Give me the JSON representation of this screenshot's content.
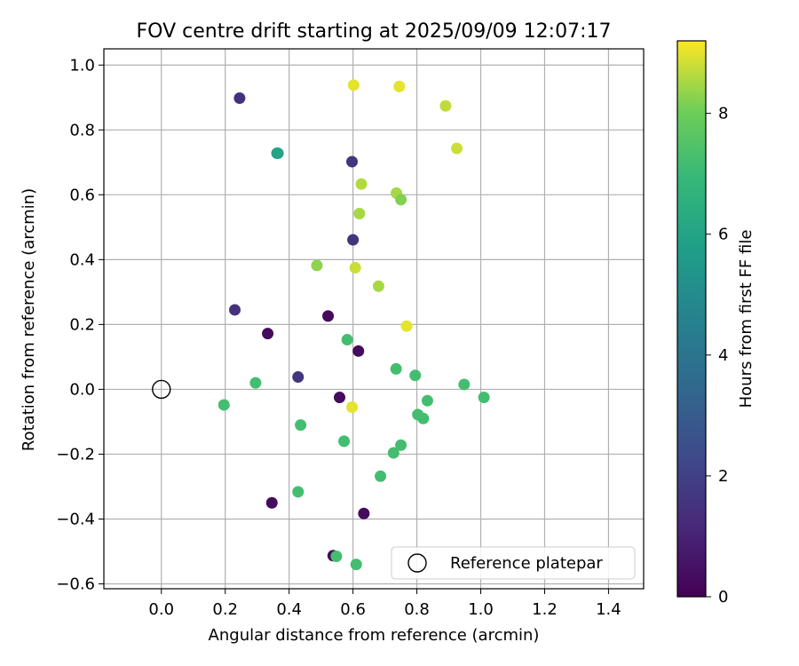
{
  "chart_data": {
    "type": "scatter",
    "title": "FOV centre drift starting at 2025/09/09 12:07:17",
    "xlabel": "Angular distance from reference (arcmin)",
    "ylabel": "Rotation from reference (arcmin)",
    "xlim": [
      -0.18,
      1.51
    ],
    "ylim": [
      -0.615,
      1.05
    ],
    "xticks": [
      0.0,
      0.2,
      0.4,
      0.6,
      0.8,
      1.0,
      1.2,
      1.4
    ],
    "xtick_labels": [
      "0.0",
      "0.2",
      "0.4",
      "0.6",
      "0.8",
      "1.0",
      "1.2",
      "1.4"
    ],
    "yticks": [
      -0.6,
      -0.4,
      -0.2,
      0.0,
      0.2,
      0.4,
      0.6,
      0.8,
      1.0
    ],
    "ytick_labels": [
      "−0.6",
      "−0.4",
      "−0.2",
      "0.0",
      "0.2",
      "0.4",
      "0.6",
      "0.8",
      "1.0"
    ],
    "grid": true,
    "colormap": "viridis",
    "colorbar": {
      "label": "Hours from first FF file",
      "range": [
        0,
        9.2
      ],
      "ticks": [
        0,
        2,
        4,
        6,
        8
      ],
      "tick_labels": [
        "0",
        "2",
        "4",
        "6",
        "8"
      ]
    },
    "legend": {
      "position": "bottom-right",
      "entries": [
        "Reference platepar"
      ]
    },
    "reference_point": {
      "x": 0.0,
      "y": 0.0
    },
    "points": [
      {
        "x": 0.245,
        "y": 0.898,
        "h": 1.5
      },
      {
        "x": 0.362,
        "y": 0.728,
        "h": 6.0
      },
      {
        "x": 0.365,
        "y": 0.728,
        "h": 6.0
      },
      {
        "x": 0.597,
        "y": 0.702,
        "h": 1.6
      },
      {
        "x": 0.6,
        "y": 0.461,
        "h": 1.6
      },
      {
        "x": 0.23,
        "y": 0.245,
        "h": 1.5
      },
      {
        "x": 0.522,
        "y": 0.226,
        "h": 0.3
      },
      {
        "x": 0.333,
        "y": 0.172,
        "h": 0.3
      },
      {
        "x": 0.617,
        "y": 0.118,
        "h": 0.3
      },
      {
        "x": 0.428,
        "y": 0.038,
        "h": 1.6
      },
      {
        "x": 0.558,
        "y": -0.025,
        "h": 0.3
      },
      {
        "x": 0.346,
        "y": -0.35,
        "h": 0.3
      },
      {
        "x": 0.634,
        "y": -0.383,
        "h": 0.3
      },
      {
        "x": 0.538,
        "y": -0.513,
        "h": 0.3
      },
      {
        "x": 0.602,
        "y": 0.938,
        "h": 9.0
      },
      {
        "x": 0.745,
        "y": 0.934,
        "h": 9.0
      },
      {
        "x": 0.89,
        "y": 0.874,
        "h": 8.7
      },
      {
        "x": 0.925,
        "y": 0.743,
        "h": 8.8
      },
      {
        "x": 0.626,
        "y": 0.633,
        "h": 8.6
      },
      {
        "x": 0.736,
        "y": 0.605,
        "h": 8.5
      },
      {
        "x": 0.75,
        "y": 0.585,
        "h": 8.2
      },
      {
        "x": 0.62,
        "y": 0.542,
        "h": 8.5
      },
      {
        "x": 0.487,
        "y": 0.382,
        "h": 8.3
      },
      {
        "x": 0.607,
        "y": 0.375,
        "h": 8.8
      },
      {
        "x": 0.68,
        "y": 0.318,
        "h": 8.5
      },
      {
        "x": 0.768,
        "y": 0.195,
        "h": 9.0
      },
      {
        "x": 0.597,
        "y": -0.055,
        "h": 9.0
      },
      {
        "x": 0.582,
        "y": 0.153,
        "h": 7.2
      },
      {
        "x": 0.735,
        "y": 0.063,
        "h": 7.2
      },
      {
        "x": 0.795,
        "y": 0.043,
        "h": 7.2
      },
      {
        "x": 0.295,
        "y": 0.02,
        "h": 7.2
      },
      {
        "x": 0.948,
        "y": 0.015,
        "h": 7.2
      },
      {
        "x": 1.01,
        "y": -0.025,
        "h": 7.2
      },
      {
        "x": 0.833,
        "y": -0.035,
        "h": 7.2
      },
      {
        "x": 0.196,
        "y": -0.048,
        "h": 7.2
      },
      {
        "x": 0.803,
        "y": -0.078,
        "h": 7.2
      },
      {
        "x": 0.82,
        "y": -0.09,
        "h": 7.2
      },
      {
        "x": 0.436,
        "y": -0.11,
        "h": 7.2
      },
      {
        "x": 0.572,
        "y": -0.16,
        "h": 7.2
      },
      {
        "x": 0.75,
        "y": -0.172,
        "h": 7.2
      },
      {
        "x": 0.727,
        "y": -0.196,
        "h": 7.2
      },
      {
        "x": 0.686,
        "y": -0.268,
        "h": 7.2
      },
      {
        "x": 0.428,
        "y": -0.316,
        "h": 7.2
      },
      {
        "x": 0.548,
        "y": -0.515,
        "h": 7.2
      },
      {
        "x": 0.61,
        "y": -0.54,
        "h": 7.2
      }
    ]
  }
}
